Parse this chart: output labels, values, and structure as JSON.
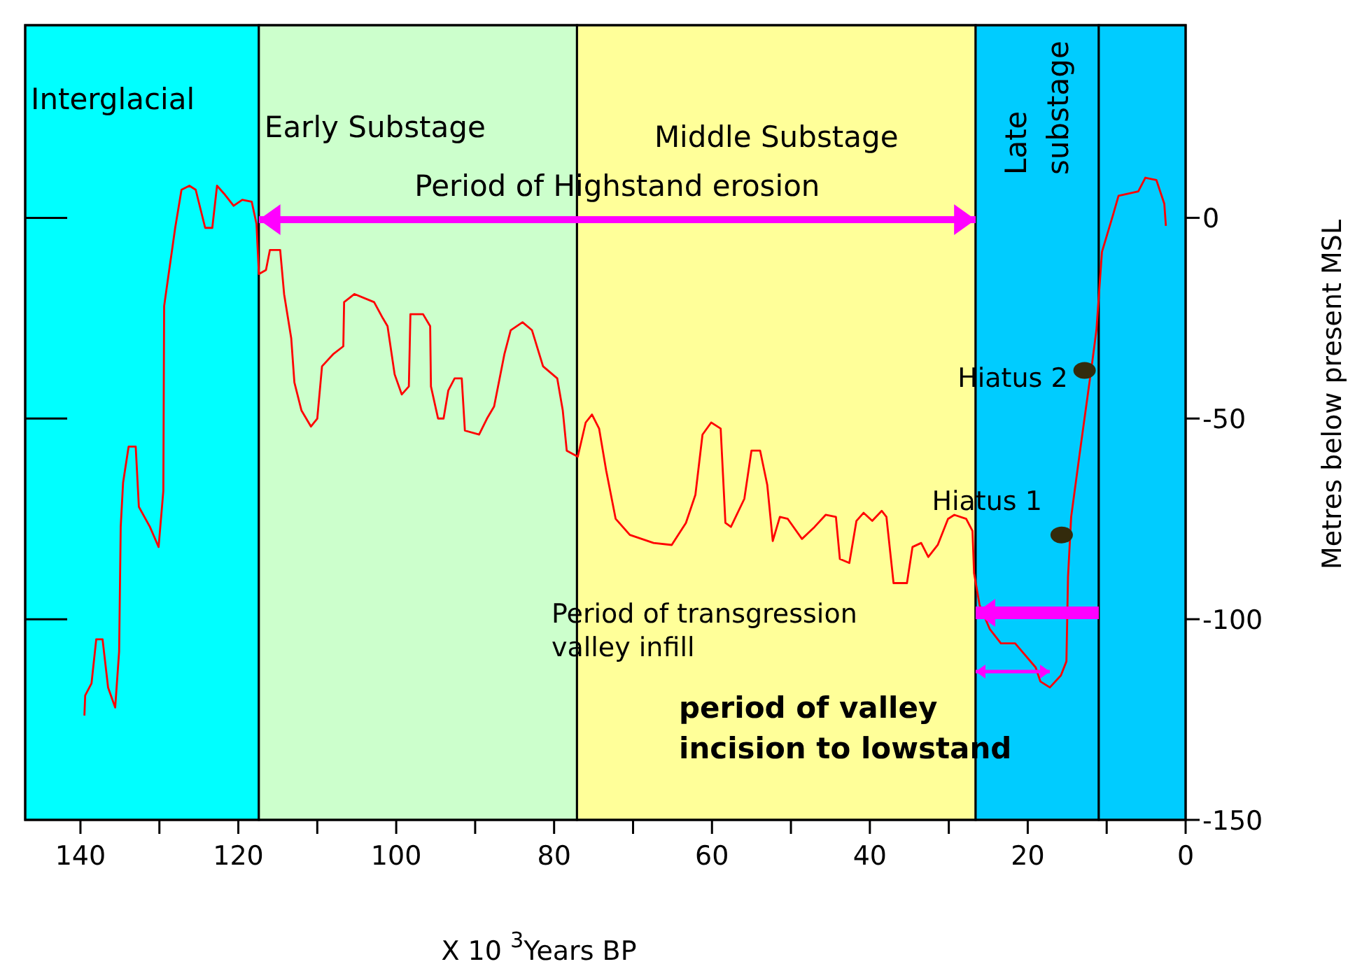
{
  "chart_data": {
    "type": "line",
    "xlabel": "X 10 $^{3}$Years BP",
    "ylabel": "Metres below present MSL",
    "xlim": [
      147,
      0
    ],
    "ylim": [
      -150,
      48
    ],
    "xticks": [
      140,
      {
        "value": 130,
        "label": null
      },
      120,
      {
        "value": 110,
        "label": null
      },
      100,
      {
        "value": 90,
        "label": null
      },
      80,
      {
        "value": 70,
        "label": null
      },
      60,
      {
        "value": 50,
        "label": null
      },
      40,
      {
        "value": 30,
        "label": null
      },
      20,
      {
        "value": 10,
        "label": null
      },
      0
    ],
    "yticks": [
      0,
      -50,
      -100,
      -150
    ],
    "bands": [
      {
        "axis": "x",
        "from": 147,
        "to": 117.4,
        "label": "Interglacial",
        "color": "#00ffff"
      },
      {
        "axis": "x",
        "from": 117.4,
        "to": 77.1,
        "label": "Early Substage",
        "color": "#ccffcc"
      },
      {
        "axis": "x",
        "from": 77.1,
        "to": 26.6,
        "label": "Middle Substage",
        "color": "#ffff99"
      },
      {
        "axis": "x",
        "from": 26.6,
        "to": 11,
        "label": "Late\nsubstage",
        "color": "#00ccff"
      },
      {
        "axis": "x",
        "from": 11,
        "to": 0,
        "color": "#00ccff"
      }
    ],
    "annotations": [
      "Period of Highstand erosion",
      "Period of transgression\nvalley infill",
      "period of valley\nincision to lowstand",
      {
        "text": "Hiatus 2",
        "x": 12.8,
        "y": -38
      },
      {
        "text": "Hiatus 1",
        "x": 15.7,
        "y": -79
      }
    ],
    "series": [
      {
        "color": "#ff0000",
        "marker": "none",
        "line_style": "solid",
        "x": [
          139.5,
          139.4,
          138.6,
          138,
          137.2,
          136.5,
          135.6,
          135.1,
          134.9,
          134.6,
          133.9,
          133,
          132.6,
          131.2,
          130.1,
          129.5,
          129.4,
          128.9,
          128,
          127.2,
          126.2,
          125.4,
          124.2,
          123.3,
          122.7,
          121.8,
          120.6,
          119.5,
          118.3,
          117.7,
          117.4,
          116.5,
          116,
          114.7,
          114.2,
          113.3,
          112.9,
          112,
          110.8,
          110,
          109.4,
          108,
          106.7,
          106.6,
          105.3,
          102.8,
          101.7,
          101.1,
          100.2,
          99.3,
          98.4,
          98.2,
          96.6,
          95.7,
          95.6,
          94.7,
          94,
          93.4,
          92.6,
          91.7,
          91.3,
          89.5,
          88.5,
          87.6,
          86.3,
          85.5,
          84,
          82.8,
          81.4,
          79.6,
          78.9,
          78.4,
          77,
          76,
          75.2,
          74.3,
          73.4,
          72.2,
          70.4,
          67.4,
          65.1,
          63.3,
          62.1,
          61.2,
          60.1,
          58.9,
          58.3,
          57.6,
          55.9,
          55,
          53.9,
          53,
          52.3,
          51.4,
          50.4,
          48.6,
          47,
          45.6,
          44.3,
          43.8,
          42.6,
          41.7,
          40.8,
          39.7,
          38.5,
          37.9,
          37,
          35.3,
          34.6,
          33.5,
          32.6,
          31.4,
          30.1,
          29.3,
          27.8,
          27,
          26.8,
          26.1,
          24.8,
          23.4,
          21.6,
          19,
          18.4,
          17.2,
          15.8,
          15.1,
          14.9,
          14.5,
          13.3,
          11.9,
          11.3,
          10.6,
          9.2,
          8.5,
          6,
          5.1,
          3.7,
          2.7,
          2.5
        ],
        "values": [
          -124,
          -119,
          -116,
          -105,
          -105,
          -117,
          -122,
          -108,
          -77,
          -66,
          -57,
          -57,
          -72,
          -77,
          -82,
          -68,
          -22,
          -15,
          -2.5,
          7,
          8,
          7,
          -2.5,
          -2.5,
          8,
          6,
          3,
          4.5,
          4,
          -1.5,
          -14,
          -13,
          -8,
          -8,
          -19,
          -30,
          -41,
          -48,
          -52,
          -50,
          -37,
          -34,
          -32,
          -21,
          -19,
          -21,
          -25,
          -27,
          -39,
          -44,
          -42,
          -24,
          -24,
          -27,
          -42,
          -50,
          -50,
          -43,
          -40,
          -40,
          -53,
          -54,
          -50,
          -47,
          -34,
          -28,
          -26,
          -28,
          -37,
          -40,
          -48,
          -58,
          -59.5,
          -51,
          -49,
          -52.5,
          -63,
          -75,
          -79,
          -81,
          -81.5,
          -76,
          -69,
          -54,
          -51,
          -52.5,
          -76,
          -77,
          -70,
          -58,
          -58,
          -66.5,
          -80.5,
          -74.5,
          -75,
          -80,
          -77,
          -74,
          -74.5,
          -85,
          -86,
          -75.5,
          -73.5,
          -75.5,
          -73,
          -74.5,
          -91,
          -91,
          -82,
          -81,
          -84.5,
          -81.5,
          -75,
          -74,
          -75,
          -78,
          -88.5,
          -96.5,
          -102.5,
          -106,
          -106,
          -112,
          -115.5,
          -117,
          -114,
          -110.5,
          -89.5,
          -74.5,
          -57,
          -37,
          -28,
          -8.5,
          0.7,
          5.5,
          6.6,
          10,
          9.4,
          3.5,
          -2
        ]
      },
      {
        "type": "scatter",
        "color": "#332b0c",
        "marker": "circle",
        "x": [
          12.8,
          15.7
        ],
        "values": [
          -38,
          -79
        ]
      }
    ]
  }
}
